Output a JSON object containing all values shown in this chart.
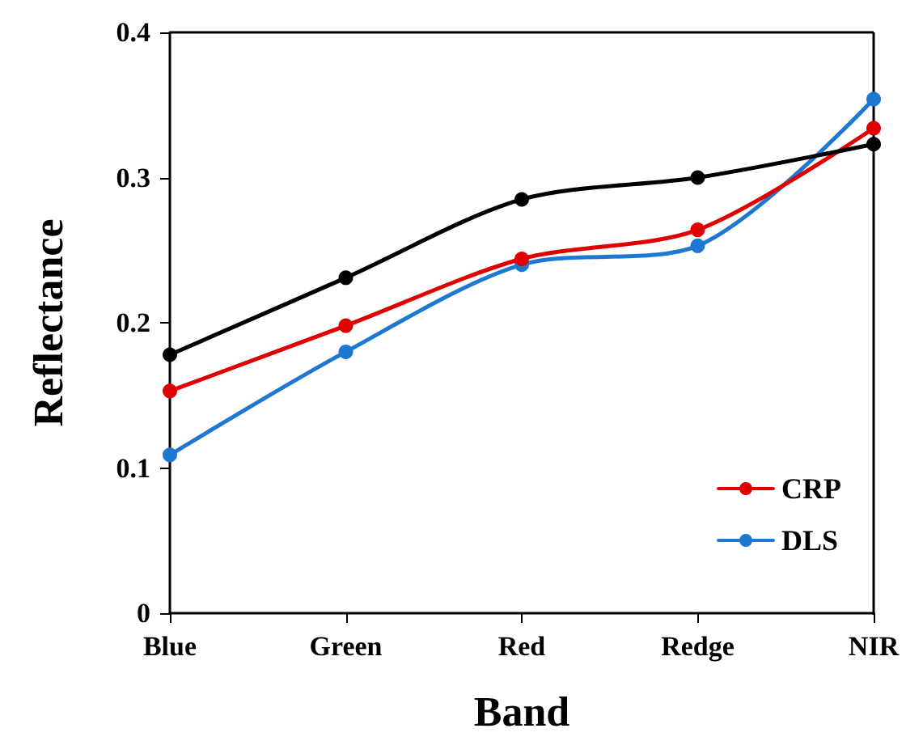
{
  "chart_data": {
    "type": "line",
    "xlabel": "Band",
    "ylabel": "Reflectance",
    "categories": [
      "Blue",
      "Green",
      "Red",
      "Redge",
      "NIR"
    ],
    "series": [
      {
        "color": "#000000",
        "values": [
          0.178,
          0.231,
          0.285,
          0.3,
          0.323
        ]
      },
      {
        "name": "CRP",
        "color": "#e00000",
        "values": [
          0.153,
          0.198,
          0.244,
          0.264,
          0.334
        ]
      },
      {
        "name": "DLS",
        "color": "#1e78d2",
        "values": [
          0.109,
          0.18,
          0.24,
          0.253,
          0.354
        ]
      }
    ],
    "ylim": [
      0,
      0.4
    ],
    "yticks": [
      0,
      0.1,
      0.2,
      0.3,
      0.4
    ],
    "grid": false,
    "legend": "bottom right",
    "marker": "circle",
    "line_style": "solid"
  }
}
